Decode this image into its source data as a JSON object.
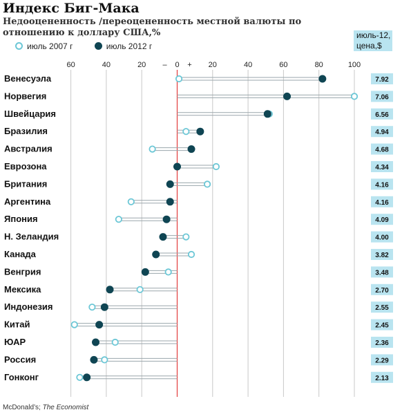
{
  "title": "Индекс Биг-Мака",
  "subtitle": "Недооцененность /переоцененность местной валюты по отношению к доллару США,%",
  "price_header": "июль-12, цена,$",
  "source": {
    "part1": "McDonald’s; ",
    "part2": "The Economist"
  },
  "colors": {
    "series_2007": "#6cc7d6",
    "series_2012": "#0f4553",
    "zero_line": "#e23b3b",
    "price_box": "#b9e4f0",
    "connector": "#9aa6ab"
  },
  "chart_data": {
    "type": "dot-plot",
    "title": "Индекс Биг-Мака",
    "subtitle": "Недооцененность /переоцененность местной валюты по отношению к доллару США,%",
    "xlim": [
      -60,
      100
    ],
    "tick_labels": [
      {
        "value": -60,
        "label": "60"
      },
      {
        "value": -40,
        "label": "40"
      },
      {
        "value": -20,
        "label": "20"
      },
      {
        "value": -7,
        "label": "–"
      },
      {
        "value": 0,
        "label": "0"
      },
      {
        "value": 7,
        "label": "+"
      },
      {
        "value": 20,
        "label": "20"
      },
      {
        "value": 40,
        "label": "40"
      },
      {
        "value": 60,
        "label": "60"
      },
      {
        "value": 80,
        "label": "80"
      },
      {
        "value": 100,
        "label": "100"
      }
    ],
    "legend": [
      {
        "name": "июль 2007 г",
        "marker": "open"
      },
      {
        "name": "июль 2012 г",
        "marker": "filled"
      }
    ],
    "legend_position": "top-left",
    "grid": true,
    "categories": [
      "Венесуэла",
      "Норвегия",
      "Швейцария",
      "Бразилия",
      "Австралия",
      "Еврозона",
      "Британия",
      "Аргентина",
      "Япония",
      "Н. Зеландия",
      "Канада",
      "Венгрия",
      "Мексика",
      "Индонезия",
      "Китай",
      "ЮАР",
      "Россия",
      "Гонконг"
    ],
    "series": [
      {
        "name": "июль 2007 г",
        "values": [
          1,
          100,
          52,
          5,
          -14,
          22,
          17,
          -26,
          -33,
          5,
          8,
          -5,
          -21,
          -48,
          -58,
          -35,
          -41,
          -55
        ]
      },
      {
        "name": "июль 2012 г",
        "values": [
          82,
          62,
          51,
          13,
          8,
          0,
          -4,
          -4,
          -6,
          -8,
          -12,
          -18,
          -38,
          -41,
          -44,
          -46,
          -47,
          -51
        ]
      }
    ],
    "prices": [
      "7.92",
      "7.06",
      "6.56",
      "4.94",
      "4.68",
      "4.34",
      "4.16",
      "4.16",
      "4.09",
      "4.00",
      "3.82",
      "3.48",
      "2.70",
      "2.55",
      "2.45",
      "2.36",
      "2.29",
      "2.13"
    ]
  }
}
